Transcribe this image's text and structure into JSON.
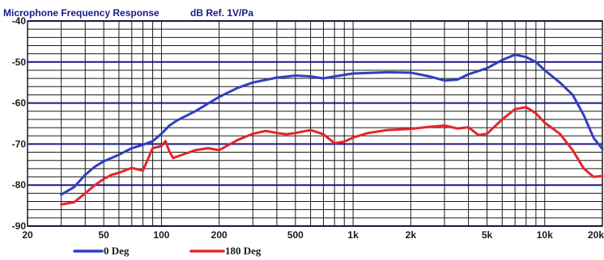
{
  "chart_data": {
    "type": "line",
    "title": "Microphone Frequency Response",
    "subtitle": "dB Ref. 1V/Pa",
    "x_scale": "log",
    "xlim": [
      20,
      20000
    ],
    "ylim": [
      -90,
      -40
    ],
    "x_ticks": [
      {
        "value": 20,
        "label": "20"
      },
      {
        "value": 50,
        "label": "50"
      },
      {
        "value": 100,
        "label": "100"
      },
      {
        "value": 200,
        "label": "200"
      },
      {
        "value": 500,
        "label": "500"
      },
      {
        "value": 1000,
        "label": "1k"
      },
      {
        "value": 2000,
        "label": "2k"
      },
      {
        "value": 5000,
        "label": "5k"
      },
      {
        "value": 10000,
        "label": "10k"
      },
      {
        "value": 20000,
        "label": "20k"
      }
    ],
    "y_ticks": [
      {
        "value": -40,
        "label": "-40"
      },
      {
        "value": -50,
        "label": "-50"
      },
      {
        "value": -60,
        "label": "-60"
      },
      {
        "value": -70,
        "label": "-70"
      },
      {
        "value": -80,
        "label": "-80"
      },
      {
        "value": -90,
        "label": "-90"
      }
    ],
    "grid": true,
    "legend_position": "bottom-left",
    "series": [
      {
        "name": "0 Deg",
        "color": "#2f3fbf",
        "points": [
          [
            30,
            -82.3
          ],
          [
            35,
            -80.5
          ],
          [
            40,
            -77.5
          ],
          [
            45,
            -75.5
          ],
          [
            50,
            -74.2
          ],
          [
            60,
            -72.6
          ],
          [
            70,
            -71.0
          ],
          [
            80,
            -70.2
          ],
          [
            90,
            -69.3
          ],
          [
            100,
            -67.5
          ],
          [
            110,
            -65.5
          ],
          [
            120,
            -64.3
          ],
          [
            150,
            -62.0
          ],
          [
            200,
            -58.5
          ],
          [
            250,
            -56.3
          ],
          [
            300,
            -55.0
          ],
          [
            400,
            -53.8
          ],
          [
            500,
            -53.3
          ],
          [
            600,
            -53.5
          ],
          [
            700,
            -54.0
          ],
          [
            800,
            -53.5
          ],
          [
            1000,
            -52.8
          ],
          [
            1500,
            -52.5
          ],
          [
            2000,
            -52.6
          ],
          [
            2500,
            -53.5
          ],
          [
            3000,
            -54.5
          ],
          [
            3500,
            -54.3
          ],
          [
            4000,
            -53.0
          ],
          [
            5000,
            -51.5
          ],
          [
            6000,
            -49.5
          ],
          [
            7000,
            -48.2
          ],
          [
            8000,
            -48.8
          ],
          [
            9000,
            -50.0
          ],
          [
            10000,
            -52.0
          ],
          [
            12000,
            -55.0
          ],
          [
            14000,
            -58.0
          ],
          [
            16000,
            -63.0
          ],
          [
            18000,
            -68.5
          ],
          [
            20000,
            -71.2
          ]
        ]
      },
      {
        "name": "180 Deg",
        "color": "#e5252b",
        "points": [
          [
            30,
            -84.7
          ],
          [
            35,
            -84.2
          ],
          [
            40,
            -82.0
          ],
          [
            45,
            -80.0
          ],
          [
            50,
            -78.5
          ],
          [
            55,
            -77.5
          ],
          [
            60,
            -77.0
          ],
          [
            70,
            -75.8
          ],
          [
            80,
            -76.5
          ],
          [
            90,
            -71.0
          ],
          [
            100,
            -70.5
          ],
          [
            105,
            -69.3
          ],
          [
            110,
            -71.8
          ],
          [
            115,
            -73.4
          ],
          [
            125,
            -72.8
          ],
          [
            150,
            -71.5
          ],
          [
            175,
            -71.0
          ],
          [
            200,
            -71.5
          ],
          [
            250,
            -69.0
          ],
          [
            300,
            -67.5
          ],
          [
            350,
            -66.8
          ],
          [
            400,
            -67.3
          ],
          [
            450,
            -67.6
          ],
          [
            500,
            -67.3
          ],
          [
            600,
            -66.6
          ],
          [
            700,
            -67.6
          ],
          [
            800,
            -69.8
          ],
          [
            900,
            -69.4
          ],
          [
            1000,
            -68.4
          ],
          [
            1200,
            -67.3
          ],
          [
            1500,
            -66.6
          ],
          [
            2000,
            -66.3
          ],
          [
            2500,
            -65.8
          ],
          [
            3000,
            -65.5
          ],
          [
            3500,
            -66.2
          ],
          [
            4000,
            -65.9
          ],
          [
            4500,
            -67.8
          ],
          [
            5000,
            -67.5
          ],
          [
            6000,
            -64.0
          ],
          [
            7000,
            -61.5
          ],
          [
            8000,
            -61.0
          ],
          [
            9000,
            -62.5
          ],
          [
            10000,
            -64.8
          ],
          [
            12000,
            -67.5
          ],
          [
            14000,
            -71.5
          ],
          [
            16000,
            -76.0
          ],
          [
            18000,
            -78.0
          ],
          [
            20000,
            -77.8
          ]
        ]
      }
    ]
  }
}
